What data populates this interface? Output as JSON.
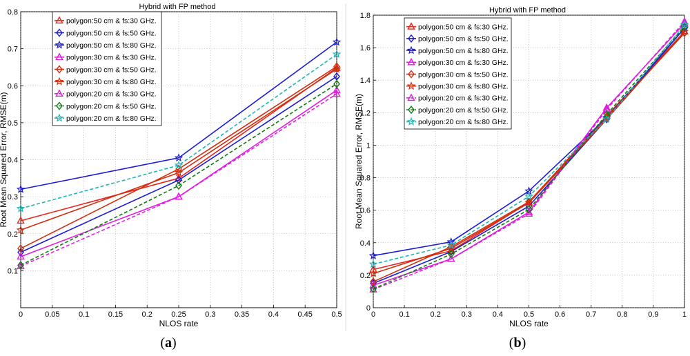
{
  "chart_data": [
    {
      "type": "line",
      "title": "Hybrid with FP method",
      "xlabel": "NLOS rate",
      "ylabel": "Root Mean Squared Error, RMSE(m)",
      "xlim": [
        0,
        0.5
      ],
      "ylim": [
        0,
        0.8
      ],
      "x_ticks": [
        "0",
        "0.05",
        "0.1",
        "0.15",
        "0.2",
        "0.25",
        "0.3",
        "0.35",
        "0.4",
        "0.45",
        "0.5"
      ],
      "y_ticks": [
        "0.1",
        "0.2",
        "0.3",
        "0.4",
        "0.5",
        "0.6",
        "0.7",
        "0.8"
      ],
      "caption_pre": "(",
      "caption_letter": "a",
      "caption_post": ")",
      "series": [
        {
          "name": "polygon:50 cm & fs:30 GHz.",
          "color": "#e8261c",
          "marker": "triangle",
          "dash": "solid",
          "x": [
            0,
            0.25,
            0.5
          ],
          "y": [
            0.235,
            0.35,
            0.648
          ]
        },
        {
          "name": "polygon:50 cm & fs:50 GHz.",
          "color": "#1c1cd4",
          "marker": "diamond",
          "dash": "solid",
          "x": [
            0,
            0.25,
            0.5
          ],
          "y": [
            0.15,
            0.345,
            0.625
          ]
        },
        {
          "name": "polygon:50 cm & fs:80 GHz.",
          "color": "#1c1cd4",
          "marker": "star",
          "dash": "solid",
          "x": [
            0,
            0.25,
            0.5
          ],
          "y": [
            0.32,
            0.405,
            0.718
          ]
        },
        {
          "name": "polygon:30 cm & fs:30 GHz.",
          "color": "#e01ce0",
          "marker": "triangle",
          "dash": "solid",
          "x": [
            0,
            0.25,
            0.5
          ],
          "y": [
            0.138,
            0.3,
            0.588
          ]
        },
        {
          "name": "polygon:30 cm & fs:50 GHz.",
          "color": "#d12e0e",
          "marker": "diamond",
          "dash": "solid",
          "x": [
            0,
            0.25,
            0.5
          ],
          "y": [
            0.16,
            0.375,
            0.652
          ]
        },
        {
          "name": "polygon:30 cm & fs:80 GHz.",
          "color": "#d12e0e",
          "marker": "star",
          "dash": "solid",
          "x": [
            0,
            0.25,
            0.5
          ],
          "y": [
            0.21,
            0.365,
            0.645
          ]
        },
        {
          "name": "polygon:20 cm & fs:30 GHz.",
          "color": "#e01ce0",
          "marker": "triangle",
          "dash": "dashed",
          "x": [
            0,
            0.25,
            0.5
          ],
          "y": [
            0.112,
            0.3,
            0.578
          ]
        },
        {
          "name": "polygon:20 cm & fs:50 GHz.",
          "color": "#0e7a0e",
          "marker": "diamond",
          "dash": "dashed",
          "x": [
            0,
            0.25,
            0.5
          ],
          "y": [
            0.115,
            0.33,
            0.605
          ]
        },
        {
          "name": "polygon:20 cm & fs:80 GHz.",
          "color": "#1fb5b5",
          "marker": "star",
          "dash": "dashed",
          "x": [
            0,
            0.25,
            0.5
          ],
          "y": [
            0.268,
            0.385,
            0.685
          ]
        }
      ]
    },
    {
      "type": "line",
      "title": "Hybrid with FP method",
      "xlabel": "NLOS rate",
      "ylabel": "Root Mean Squared Error, RMSE(m)",
      "xlim": [
        0,
        1
      ],
      "ylim": [
        0,
        1.8
      ],
      "x_ticks": [
        "0",
        "0.1",
        "0.2",
        "0.3",
        "0.4",
        "0.5",
        "0.6",
        "0.7",
        "0.8",
        "0.9",
        "1"
      ],
      "y_ticks": [
        "0",
        "0.2",
        "0.4",
        "0.6",
        "0.8",
        "1",
        "1.2",
        "1.4",
        "1.6",
        "1.8"
      ],
      "caption_pre": "(",
      "caption_letter": "b",
      "caption_post": ")",
      "series": [
        {
          "name": "polygon:50 cm & fs:30 GHz.",
          "color": "#e8261c",
          "marker": "triangle",
          "dash": "solid",
          "x": [
            0,
            0.25,
            0.5,
            0.75,
            1
          ],
          "y": [
            0.235,
            0.35,
            0.648,
            1.18,
            1.7
          ]
        },
        {
          "name": "polygon:50 cm & fs:50 GHz.",
          "color": "#1c1cd4",
          "marker": "diamond",
          "dash": "solid",
          "x": [
            0,
            0.25,
            0.5,
            0.75,
            1
          ],
          "y": [
            0.15,
            0.345,
            0.625,
            1.16,
            1.72
          ]
        },
        {
          "name": "polygon:50 cm & fs:80 GHz.",
          "color": "#1c1cd4",
          "marker": "star",
          "dash": "solid",
          "x": [
            0,
            0.25,
            0.5,
            0.75,
            1
          ],
          "y": [
            0.32,
            0.405,
            0.718,
            1.17,
            1.72
          ]
        },
        {
          "name": "polygon:30 cm & fs:30 GHz.",
          "color": "#e01ce0",
          "marker": "triangle",
          "dash": "solid",
          "x": [
            0,
            0.25,
            0.5,
            0.75,
            1
          ],
          "y": [
            0.138,
            0.3,
            0.588,
            1.23,
            1.75
          ]
        },
        {
          "name": "polygon:30 cm & fs:50 GHz.",
          "color": "#d12e0e",
          "marker": "diamond",
          "dash": "solid",
          "x": [
            0,
            0.25,
            0.5,
            0.75,
            1
          ],
          "y": [
            0.16,
            0.375,
            0.652,
            1.17,
            1.69
          ]
        },
        {
          "name": "polygon:30 cm & fs:80 GHz.",
          "color": "#d12e0e",
          "marker": "star",
          "dash": "solid",
          "x": [
            0,
            0.25,
            0.5,
            0.75,
            1
          ],
          "y": [
            0.21,
            0.365,
            0.645,
            1.16,
            1.7
          ]
        },
        {
          "name": "polygon:20 cm & fs:30 GHz.",
          "color": "#e01ce0",
          "marker": "triangle",
          "dash": "dashed",
          "x": [
            0,
            0.25,
            0.5,
            0.75,
            1
          ],
          "y": [
            0.112,
            0.3,
            0.578,
            1.22,
            1.76
          ]
        },
        {
          "name": "polygon:20 cm & fs:50 GHz.",
          "color": "#0e7a0e",
          "marker": "diamond",
          "dash": "dashed",
          "x": [
            0,
            0.25,
            0.5,
            0.75,
            1
          ],
          "y": [
            0.115,
            0.33,
            0.605,
            1.19,
            1.73
          ]
        },
        {
          "name": "polygon:20 cm & fs:80 GHz.",
          "color": "#1fb5b5",
          "marker": "star",
          "dash": "dashed",
          "x": [
            0,
            0.25,
            0.5,
            0.75,
            1
          ],
          "y": [
            0.268,
            0.385,
            0.685,
            1.16,
            1.74
          ]
        }
      ]
    }
  ]
}
